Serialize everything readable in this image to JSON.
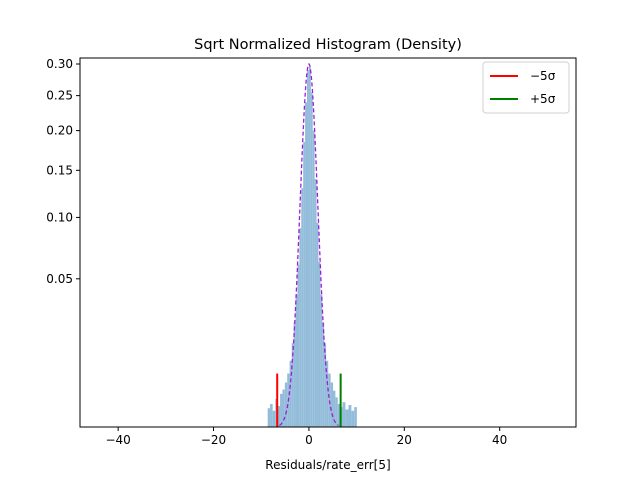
{
  "chart_data": {
    "type": "histogram",
    "title": "Sqrt Normalized Histogram (Density)",
    "xlabel": "Residuals/rate_err[5]",
    "ylabel": "",
    "xlim": [
      -48,
      56
    ],
    "ylim": [
      0,
      0.31
    ],
    "y_scale": "sqrt",
    "x_ticks": [
      -40,
      -20,
      0,
      20,
      40
    ],
    "x_tick_labels": [
      "−40",
      "−20",
      "0",
      "20",
      "40"
    ],
    "y_ticks": [
      0.05,
      0.1,
      0.15,
      0.2,
      0.25,
      0.3
    ],
    "y_tick_labels": [
      "0.05",
      "0.10",
      "0.15",
      "0.20",
      "0.25",
      "0.30"
    ],
    "histogram_fill_color": "#92bcd9",
    "fit_curve": {
      "style": "dashed",
      "color": "#9b1fd6",
      "mean": 0,
      "sigma": 1.33,
      "peak": 0.3
    },
    "bins": [
      [
        -8.4,
        0.0008
      ],
      [
        -7.9,
        0.0012
      ],
      [
        -7.3,
        0.0006
      ],
      [
        -6.8,
        0.0018
      ],
      [
        -6.3,
        0.001
      ],
      [
        -5.8,
        0.0025
      ],
      [
        -5.3,
        0.0032
      ],
      [
        -4.8,
        0.0045
      ],
      [
        -4.3,
        0.0065
      ],
      [
        -3.8,
        0.01
      ],
      [
        -3.4,
        0.016
      ],
      [
        -3.0,
        0.025
      ],
      [
        -2.6,
        0.04
      ],
      [
        -2.2,
        0.06
      ],
      [
        -1.8,
        0.09
      ],
      [
        -1.4,
        0.13
      ],
      [
        -1.0,
        0.185
      ],
      [
        -0.6,
        0.24
      ],
      [
        -0.2,
        0.29
      ],
      [
        0.2,
        0.295
      ],
      [
        0.6,
        0.255
      ],
      [
        1.0,
        0.2
      ],
      [
        1.4,
        0.14
      ],
      [
        1.8,
        0.095
      ],
      [
        2.2,
        0.062
      ],
      [
        2.6,
        0.04
      ],
      [
        3.0,
        0.025
      ],
      [
        3.4,
        0.016
      ],
      [
        3.8,
        0.01
      ],
      [
        4.3,
        0.0065
      ],
      [
        4.8,
        0.0045
      ],
      [
        5.3,
        0.003
      ],
      [
        5.8,
        0.002
      ],
      [
        6.3,
        0.0012
      ],
      [
        6.8,
        0.0009
      ],
      [
        7.3,
        0.0014
      ],
      [
        8.0,
        0.0007
      ],
      [
        8.6,
        0.0011
      ],
      [
        9.2,
        0.0006
      ],
      [
        9.8,
        0.0009
      ]
    ],
    "reference_lines": [
      {
        "name": "−5σ",
        "x": -6.65,
        "y_top": 0.0065,
        "color": "#ff0000"
      },
      {
        "name": "+5σ",
        "x": 6.65,
        "y_top": 0.0065,
        "color": "#008000"
      }
    ],
    "legend": {
      "position": "top-right",
      "entries": [
        {
          "label": "−5σ",
          "color": "#ff0000"
        },
        {
          "label": "+5σ",
          "color": "#008000"
        }
      ]
    }
  }
}
